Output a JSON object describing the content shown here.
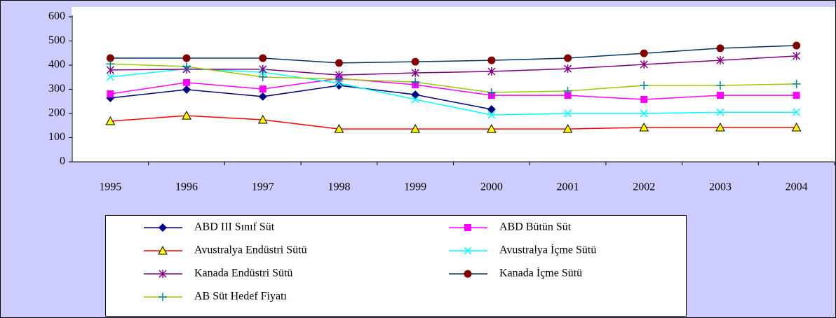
{
  "chart_data": {
    "type": "line",
    "categories": [
      "1995",
      "1996",
      "1997",
      "1998",
      "1999",
      "2000",
      "2001",
      "2002",
      "2003",
      "2004"
    ],
    "ylim": [
      0,
      600
    ],
    "yticks": [
      0,
      100,
      200,
      300,
      400,
      500,
      600
    ],
    "series": [
      {
        "name": "ABD III Sınıf Süt",
        "color": "#000080",
        "marker": "diamond",
        "marker_color": "#000080",
        "values": [
          264,
          299,
          270,
          316,
          278,
          217,
          null,
          null,
          null,
          null
        ]
      },
      {
        "name": "ABD Bütün Süt",
        "color": "#ff00ff",
        "marker": "square",
        "marker_color": "#ff00ff",
        "values": [
          281,
          328,
          301,
          345,
          319,
          275,
          275,
          258,
          275,
          275
        ]
      },
      {
        "name": "Avustralya Endüstri Sütü",
        "color": "#ff0000",
        "marker": "triangle",
        "marker_color": "#ffff00",
        "values": [
          168,
          191,
          174,
          136,
          136,
          136,
          136,
          142,
          142,
          142
        ]
      },
      {
        "name": "Avustralya İçme Sütü",
        "color": "#00ffff",
        "marker": "x",
        "marker_color": "#00ffff",
        "values": [
          351,
          385,
          371,
          325,
          258,
          194,
          200,
          200,
          205,
          205
        ]
      },
      {
        "name": "Kanada Endüstri Sütü",
        "color": "#800080",
        "marker": "asterisk",
        "marker_color": "#800080",
        "values": [
          380,
          383,
          383,
          359,
          368,
          374,
          385,
          403,
          420,
          438
        ]
      },
      {
        "name": "Kanada İçme Sütü",
        "color": "#003366",
        "marker": "circle",
        "marker_color": "#800000",
        "values": [
          429,
          429,
          429,
          409,
          414,
          420,
          429,
          449,
          470,
          481
        ]
      },
      {
        "name": "AB Süt Hedef Fiyatı",
        "color": "#99cc00",
        "marker": "plus",
        "marker_color": "#008080",
        "values": [
          405,
          394,
          351,
          342,
          330,
          287,
          293,
          316,
          316,
          322
        ]
      }
    ]
  }
}
